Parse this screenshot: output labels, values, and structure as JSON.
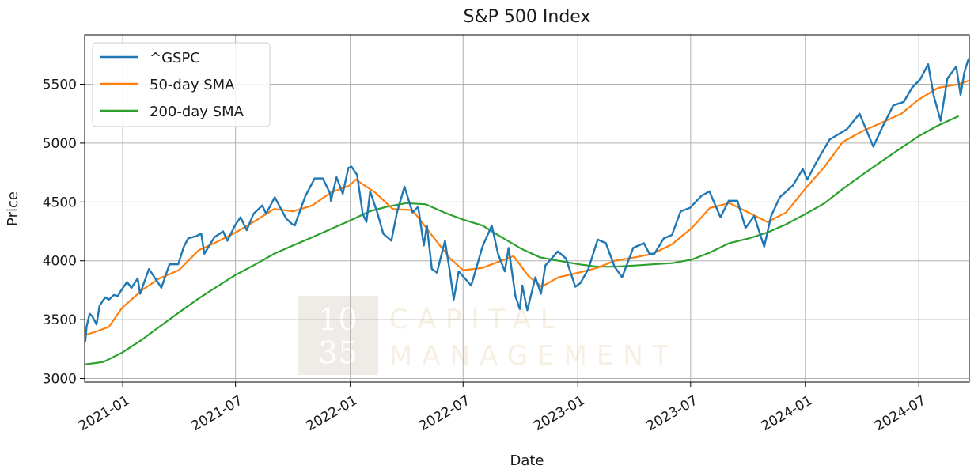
{
  "chart_data": {
    "type": "line",
    "title": "S&P 500 Index",
    "xlabel": "Date",
    "ylabel": "Price",
    "xlim": [
      "2020-11-01",
      "2024-09-20"
    ],
    "ylim": [
      2970,
      5920
    ],
    "xticks": [
      "2021-01",
      "2021-07",
      "2022-01",
      "2022-07",
      "2023-01",
      "2023-07",
      "2024-01",
      "2024-07"
    ],
    "yticks": [
      3000,
      3500,
      4000,
      4500,
      5000,
      5500
    ],
    "grid": true,
    "legend_position": "top-left",
    "series": [
      {
        "name": "^GSPC",
        "color": "#1f77b4",
        "points": [
          [
            "2020-11-02",
            3310
          ],
          [
            "2020-11-04",
            3440
          ],
          [
            "2020-11-09",
            3550
          ],
          [
            "2020-11-13",
            3530
          ],
          [
            "2020-11-20",
            3460
          ],
          [
            "2020-11-25",
            3620
          ],
          [
            "2020-12-04",
            3690
          ],
          [
            "2020-12-10",
            3670
          ],
          [
            "2020-12-18",
            3710
          ],
          [
            "2020-12-24",
            3700
          ],
          [
            "2020-12-31",
            3760
          ],
          [
            "2021-01-08",
            3820
          ],
          [
            "2021-01-15",
            3770
          ],
          [
            "2021-01-25",
            3850
          ],
          [
            "2021-01-29",
            3720
          ],
          [
            "2021-02-12",
            3930
          ],
          [
            "2021-02-26",
            3820
          ],
          [
            "2021-03-04",
            3770
          ],
          [
            "2021-03-17",
            3970
          ],
          [
            "2021-03-31",
            3970
          ],
          [
            "2021-04-09",
            4120
          ],
          [
            "2021-04-16",
            4190
          ],
          [
            "2021-04-29",
            4210
          ],
          [
            "2021-05-07",
            4230
          ],
          [
            "2021-05-12",
            4060
          ],
          [
            "2021-05-28",
            4200
          ],
          [
            "2021-06-11",
            4250
          ],
          [
            "2021-06-18",
            4170
          ],
          [
            "2021-06-30",
            4300
          ],
          [
            "2021-07-09",
            4370
          ],
          [
            "2021-07-19",
            4260
          ],
          [
            "2021-07-30",
            4400
          ],
          [
            "2021-08-13",
            4470
          ],
          [
            "2021-08-19",
            4400
          ],
          [
            "2021-08-31",
            4520
          ],
          [
            "2021-09-02",
            4540
          ],
          [
            "2021-09-20",
            4360
          ],
          [
            "2021-09-30",
            4310
          ],
          [
            "2021-10-04",
            4300
          ],
          [
            "2021-10-21",
            4550
          ],
          [
            "2021-11-05",
            4700
          ],
          [
            "2021-11-18",
            4700
          ],
          [
            "2021-11-30",
            4570
          ],
          [
            "2021-12-01",
            4510
          ],
          [
            "2021-12-10",
            4710
          ],
          [
            "2021-12-20",
            4570
          ],
          [
            "2021-12-29",
            4790
          ],
          [
            "2022-01-03",
            4800
          ],
          [
            "2022-01-12",
            4730
          ],
          [
            "2022-01-21",
            4400
          ],
          [
            "2022-01-27",
            4330
          ],
          [
            "2022-02-02",
            4590
          ],
          [
            "2022-02-14",
            4400
          ],
          [
            "2022-02-23",
            4230
          ],
          [
            "2022-03-08",
            4170
          ],
          [
            "2022-03-17",
            4410
          ],
          [
            "2022-03-29",
            4630
          ],
          [
            "2022-04-11",
            4410
          ],
          [
            "2022-04-20",
            4460
          ],
          [
            "2022-04-29",
            4130
          ],
          [
            "2022-05-04",
            4300
          ],
          [
            "2022-05-12",
            3930
          ],
          [
            "2022-05-20",
            3900
          ],
          [
            "2022-06-02",
            4170
          ],
          [
            "2022-06-10",
            3900
          ],
          [
            "2022-06-16",
            3670
          ],
          [
            "2022-06-24",
            3910
          ],
          [
            "2022-07-14",
            3790
          ],
          [
            "2022-08-01",
            4120
          ],
          [
            "2022-08-16",
            4300
          ],
          [
            "2022-08-26",
            4060
          ],
          [
            "2022-09-06",
            3910
          ],
          [
            "2022-09-12",
            4110
          ],
          [
            "2022-09-23",
            3700
          ],
          [
            "2022-09-30",
            3590
          ],
          [
            "2022-10-04",
            3790
          ],
          [
            "2022-10-12",
            3580
          ],
          [
            "2022-10-25",
            3860
          ],
          [
            "2022-11-03",
            3720
          ],
          [
            "2022-11-10",
            3960
          ],
          [
            "2022-11-30",
            4080
          ],
          [
            "2022-12-13",
            4020
          ],
          [
            "2022-12-28",
            3780
          ],
          [
            "2023-01-05",
            3810
          ],
          [
            "2023-01-18",
            3930
          ],
          [
            "2023-02-02",
            4180
          ],
          [
            "2023-02-15",
            4150
          ],
          [
            "2023-03-01",
            3950
          ],
          [
            "2023-03-13",
            3860
          ],
          [
            "2023-03-31",
            4110
          ],
          [
            "2023-04-17",
            4150
          ],
          [
            "2023-04-26",
            4060
          ],
          [
            "2023-05-04",
            4060
          ],
          [
            "2023-05-19",
            4190
          ],
          [
            "2023-06-01",
            4220
          ],
          [
            "2023-06-15",
            4420
          ],
          [
            "2023-06-30",
            4450
          ],
          [
            "2023-07-18",
            4550
          ],
          [
            "2023-07-31",
            4590
          ],
          [
            "2023-08-18",
            4370
          ],
          [
            "2023-08-31",
            4510
          ],
          [
            "2023-09-14",
            4510
          ],
          [
            "2023-09-27",
            4280
          ],
          [
            "2023-10-11",
            4380
          ],
          [
            "2023-10-27",
            4120
          ],
          [
            "2023-11-07",
            4380
          ],
          [
            "2023-11-21",
            4540
          ],
          [
            "2023-12-12",
            4640
          ],
          [
            "2023-12-28",
            4780
          ],
          [
            "2024-01-04",
            4690
          ],
          [
            "2024-01-19",
            4840
          ],
          [
            "2024-02-09",
            5030
          ],
          [
            "2024-03-08",
            5120
          ],
          [
            "2024-03-28",
            5250
          ],
          [
            "2024-04-19",
            4970
          ],
          [
            "2024-05-03",
            5130
          ],
          [
            "2024-05-21",
            5320
          ],
          [
            "2024-06-07",
            5350
          ],
          [
            "2024-06-20",
            5470
          ],
          [
            "2024-07-03",
            5540
          ],
          [
            "2024-07-16",
            5670
          ],
          [
            "2024-07-25",
            5400
          ],
          [
            "2024-08-05",
            5190
          ],
          [
            "2024-08-16",
            5550
          ],
          [
            "2024-08-30",
            5650
          ],
          [
            "2024-09-06",
            5410
          ],
          [
            "2024-09-12",
            5600
          ],
          [
            "2024-09-19",
            5720
          ]
        ]
      },
      {
        "name": "50-day SMA",
        "color": "#ff7f0e",
        "points": [
          [
            "2020-11-02",
            3370
          ],
          [
            "2020-11-20",
            3400
          ],
          [
            "2020-12-10",
            3440
          ],
          [
            "2020-12-31",
            3600
          ],
          [
            "2021-02-01",
            3750
          ],
          [
            "2021-03-01",
            3850
          ],
          [
            "2021-04-01",
            3920
          ],
          [
            "2021-05-03",
            4090
          ],
          [
            "2021-06-01",
            4160
          ],
          [
            "2021-07-01",
            4240
          ],
          [
            "2021-08-02",
            4340
          ],
          [
            "2021-09-01",
            4440
          ],
          [
            "2021-10-01",
            4420
          ],
          [
            "2021-11-01",
            4470
          ],
          [
            "2021-12-01",
            4580
          ],
          [
            "2021-12-31",
            4640
          ],
          [
            "2022-01-10",
            4690
          ],
          [
            "2022-02-10",
            4580
          ],
          [
            "2022-03-10",
            4440
          ],
          [
            "2022-04-11",
            4430
          ],
          [
            "2022-05-10",
            4230
          ],
          [
            "2022-06-10",
            4020
          ],
          [
            "2022-07-01",
            3920
          ],
          [
            "2022-08-01",
            3940
          ],
          [
            "2022-08-31",
            4000
          ],
          [
            "2022-09-20",
            4040
          ],
          [
            "2022-10-14",
            3870
          ],
          [
            "2022-11-04",
            3780
          ],
          [
            "2022-12-01",
            3860
          ],
          [
            "2023-01-03",
            3900
          ],
          [
            "2023-02-01",
            3940
          ],
          [
            "2023-03-01",
            4000
          ],
          [
            "2023-04-03",
            4030
          ],
          [
            "2023-05-01",
            4060
          ],
          [
            "2023-06-01",
            4140
          ],
          [
            "2023-07-03",
            4280
          ],
          [
            "2023-08-01",
            4450
          ],
          [
            "2023-09-01",
            4490
          ],
          [
            "2023-10-02",
            4410
          ],
          [
            "2023-11-01",
            4330
          ],
          [
            "2023-12-01",
            4410
          ],
          [
            "2024-01-02",
            4620
          ],
          [
            "2024-02-01",
            4800
          ],
          [
            "2024-03-01",
            5010
          ],
          [
            "2024-04-01",
            5100
          ],
          [
            "2024-05-01",
            5170
          ],
          [
            "2024-06-03",
            5250
          ],
          [
            "2024-07-01",
            5370
          ],
          [
            "2024-08-01",
            5470
          ],
          [
            "2024-09-03",
            5500
          ],
          [
            "2024-09-19",
            5530
          ]
        ]
      },
      {
        "name": "200-day SMA",
        "color": "#2ca02c",
        "points": [
          [
            "2020-11-02",
            3120
          ],
          [
            "2020-12-01",
            3140
          ],
          [
            "2020-12-31",
            3220
          ],
          [
            "2021-02-01",
            3330
          ],
          [
            "2021-03-01",
            3440
          ],
          [
            "2021-04-01",
            3560
          ],
          [
            "2021-05-03",
            3680
          ],
          [
            "2021-06-01",
            3780
          ],
          [
            "2021-07-01",
            3880
          ],
          [
            "2021-08-02",
            3970
          ],
          [
            "2021-09-01",
            4060
          ],
          [
            "2021-10-01",
            4130
          ],
          [
            "2021-11-01",
            4200
          ],
          [
            "2021-12-01",
            4270
          ],
          [
            "2021-12-31",
            4340
          ],
          [
            "2022-02-01",
            4420
          ],
          [
            "2022-03-01",
            4460
          ],
          [
            "2022-04-01",
            4490
          ],
          [
            "2022-05-02",
            4480
          ],
          [
            "2022-06-01",
            4410
          ],
          [
            "2022-07-01",
            4350
          ],
          [
            "2022-08-01",
            4300
          ],
          [
            "2022-09-01",
            4200
          ],
          [
            "2022-10-03",
            4100
          ],
          [
            "2022-11-01",
            4030
          ],
          [
            "2022-12-01",
            4000
          ],
          [
            "2023-01-03",
            3970
          ],
          [
            "2023-02-01",
            3950
          ],
          [
            "2023-03-01",
            3950
          ],
          [
            "2023-04-03",
            3960
          ],
          [
            "2023-05-01",
            3970
          ],
          [
            "2023-06-01",
            3980
          ],
          [
            "2023-07-03",
            4010
          ],
          [
            "2023-08-01",
            4070
          ],
          [
            "2023-09-01",
            4150
          ],
          [
            "2023-10-02",
            4190
          ],
          [
            "2023-11-01",
            4240
          ],
          [
            "2023-12-01",
            4310
          ],
          [
            "2024-01-02",
            4400
          ],
          [
            "2024-02-01",
            4490
          ],
          [
            "2024-03-01",
            4610
          ],
          [
            "2024-04-01",
            4730
          ],
          [
            "2024-05-01",
            4840
          ],
          [
            "2024-06-03",
            4960
          ],
          [
            "2024-07-01",
            5060
          ],
          [
            "2024-08-01",
            5150
          ],
          [
            "2024-09-03",
            5230
          ]
        ]
      }
    ]
  },
  "watermark": {
    "number_top": "10",
    "number_bottom": "35",
    "line1": "CAPITAL",
    "line2": "MANAGEMENT"
  }
}
